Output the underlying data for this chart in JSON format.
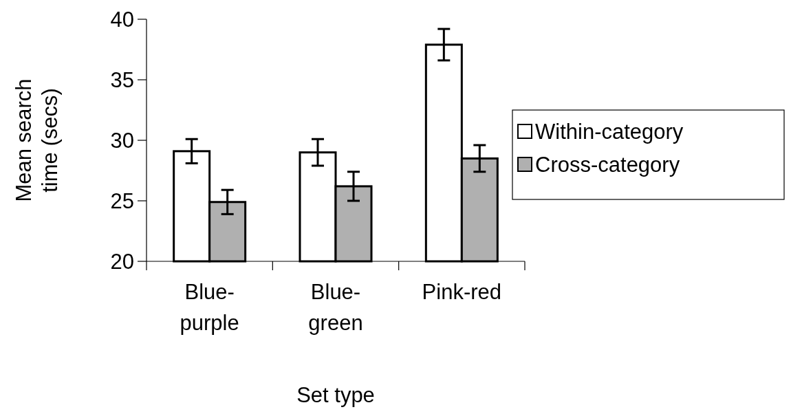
{
  "chart_data": {
    "type": "bar",
    "xlabel": "Set type",
    "ylabel": "Mean search time (secs)",
    "categories": [
      "Blue-purple",
      "Blue-green",
      "Pink-red"
    ],
    "series": [
      {
        "name": "Within-category",
        "color": "#ffffff",
        "values": [
          29.1,
          29.0,
          37.9
        ],
        "errors": [
          1.0,
          1.1,
          1.3
        ]
      },
      {
        "name": "Cross-category",
        "color": "#b0b0b0",
        "values": [
          24.9,
          26.2,
          28.5
        ],
        "errors": [
          1.0,
          1.2,
          1.1
        ]
      }
    ],
    "ylim": [
      20,
      40
    ],
    "yticks": [
      20,
      25,
      30,
      35,
      40
    ],
    "grid": false,
    "legend": "right"
  }
}
